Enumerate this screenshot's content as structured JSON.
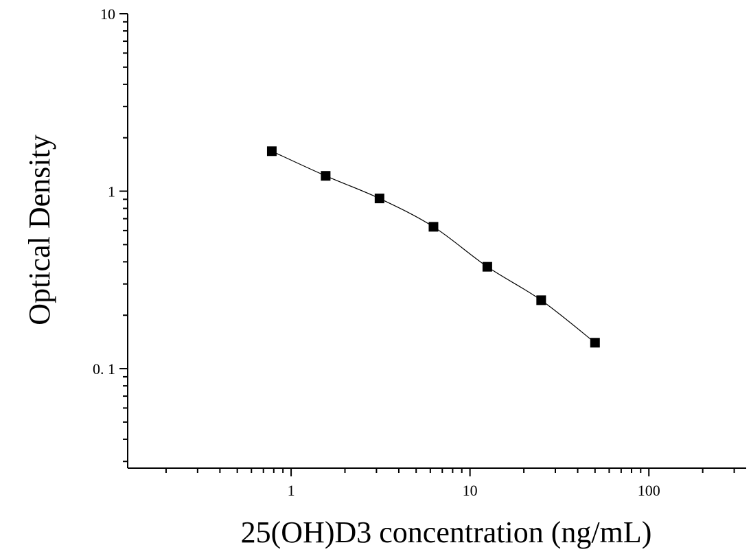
{
  "chart_data": {
    "type": "scatter",
    "xlabel": "25(OH)D3 concentration (ng/mL)",
    "ylabel": "Optical Density",
    "x_scale": "log",
    "y_scale": "log",
    "xlim": [
      0.122,
      350
    ],
    "ylim": [
      0.0275,
      10
    ],
    "x_ticks": [
      {
        "value": 1,
        "label": "1"
      },
      {
        "value": 10,
        "label": "10"
      },
      {
        "value": 100,
        "label": "100"
      }
    ],
    "y_ticks": [
      {
        "value": 0.1,
        "label": "0. 1"
      },
      {
        "value": 1,
        "label": "1"
      },
      {
        "value": 10,
        "label": "10"
      }
    ],
    "grid": false,
    "legend": "none",
    "series": [
      {
        "marker": "square",
        "fit_line": true,
        "points": [
          {
            "x": 0.78,
            "y": 1.68
          },
          {
            "x": 1.56,
            "y": 1.22
          },
          {
            "x": 3.12,
            "y": 0.91
          },
          {
            "x": 6.25,
            "y": 0.63
          },
          {
            "x": 12.5,
            "y": 0.375
          },
          {
            "x": 25,
            "y": 0.243
          },
          {
            "x": 50,
            "y": 0.14
          }
        ]
      }
    ]
  }
}
